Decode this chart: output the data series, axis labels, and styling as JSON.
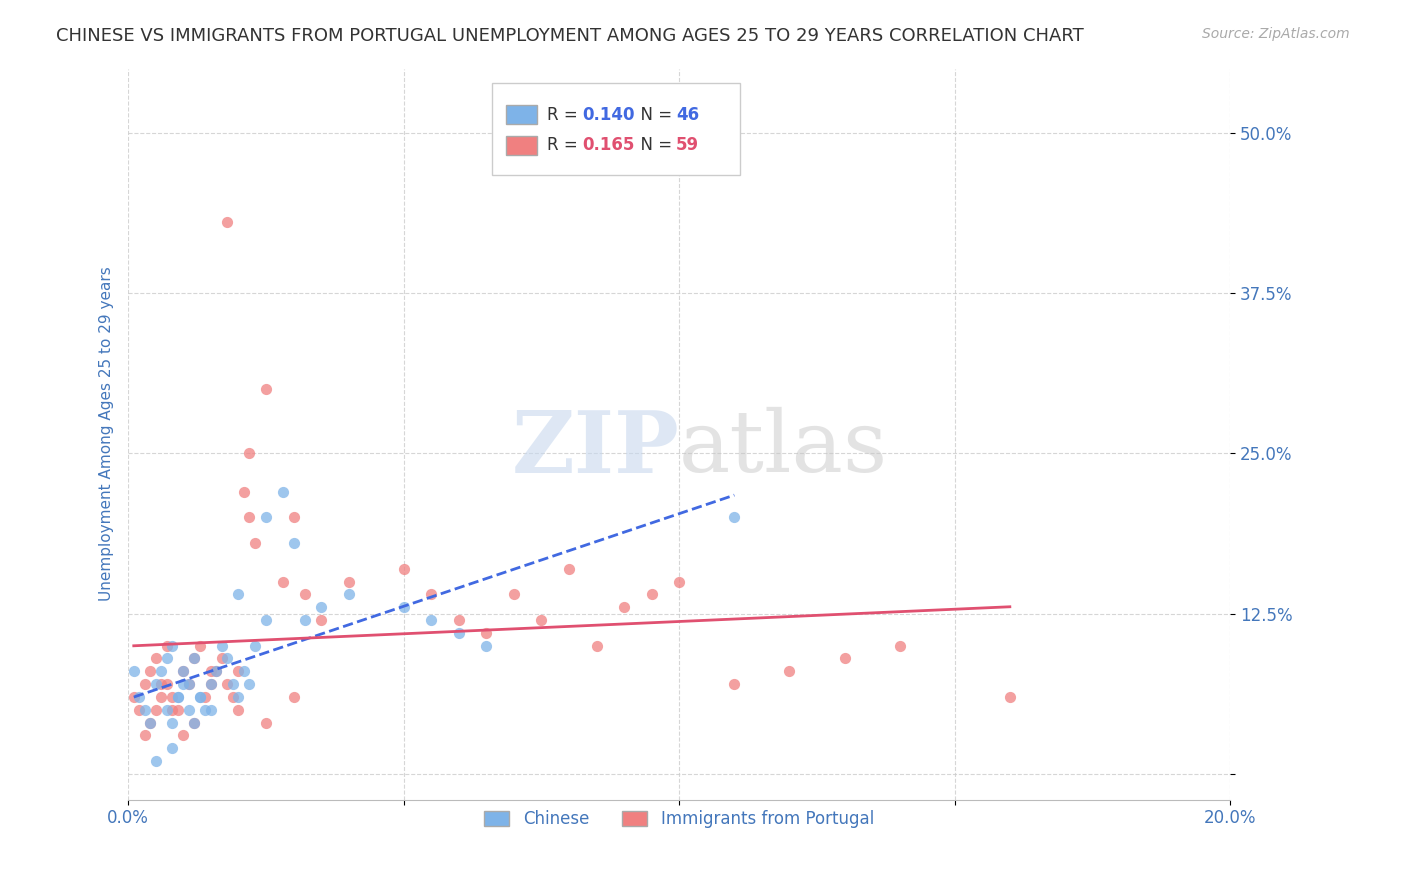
{
  "title": "CHINESE VS IMMIGRANTS FROM PORTUGAL UNEMPLOYMENT AMONG AGES 25 TO 29 YEARS CORRELATION CHART",
  "source": "Source: ZipAtlas.com",
  "ylabel": "Unemployment Among Ages 25 to 29 years",
  "xlim": [
    0.0,
    0.2
  ],
  "ylim": [
    -0.02,
    0.55
  ],
  "chinese_R": 0.14,
  "chinese_N": 46,
  "portugal_R": 0.165,
  "portugal_N": 59,
  "chinese_color": "#7EB3E8",
  "portugal_color": "#F08080",
  "chinese_line_color": "#4169E1",
  "portugal_line_color": "#E05070",
  "background_color": "#FFFFFF",
  "grid_color": "#CCCCCC",
  "watermark_zip": "ZIP",
  "watermark_atlas": "atlas",
  "title_color": "#333333",
  "axis_label_color": "#4477BB",
  "chinese_x": [
    0.001,
    0.002,
    0.003,
    0.004,
    0.005,
    0.006,
    0.007,
    0.008,
    0.009,
    0.01,
    0.011,
    0.012,
    0.013,
    0.014,
    0.015,
    0.016,
    0.017,
    0.018,
    0.019,
    0.02,
    0.021,
    0.022,
    0.023,
    0.025,
    0.028,
    0.03,
    0.032,
    0.035,
    0.04,
    0.05,
    0.055,
    0.06,
    0.065,
    0.007,
    0.008,
    0.009,
    0.01,
    0.011,
    0.012,
    0.013,
    0.015,
    0.02,
    0.025,
    0.008,
    0.11,
    0.005
  ],
  "chinese_y": [
    0.08,
    0.06,
    0.05,
    0.04,
    0.07,
    0.08,
    0.09,
    0.1,
    0.06,
    0.08,
    0.07,
    0.09,
    0.06,
    0.05,
    0.07,
    0.08,
    0.1,
    0.09,
    0.07,
    0.06,
    0.08,
    0.07,
    0.1,
    0.2,
    0.22,
    0.18,
    0.12,
    0.13,
    0.14,
    0.13,
    0.12,
    0.11,
    0.1,
    0.05,
    0.04,
    0.06,
    0.07,
    0.05,
    0.04,
    0.06,
    0.05,
    0.14,
    0.12,
    0.02,
    0.2,
    0.01
  ],
  "portugal_x": [
    0.001,
    0.002,
    0.003,
    0.004,
    0.005,
    0.006,
    0.007,
    0.008,
    0.009,
    0.01,
    0.011,
    0.012,
    0.013,
    0.014,
    0.015,
    0.016,
    0.017,
    0.018,
    0.019,
    0.02,
    0.021,
    0.022,
    0.023,
    0.025,
    0.028,
    0.03,
    0.032,
    0.035,
    0.04,
    0.05,
    0.055,
    0.06,
    0.065,
    0.07,
    0.075,
    0.08,
    0.085,
    0.09,
    0.095,
    0.1,
    0.11,
    0.12,
    0.13,
    0.14,
    0.16,
    0.004,
    0.005,
    0.006,
    0.007,
    0.015,
    0.02,
    0.025,
    0.03,
    0.018,
    0.022,
    0.01,
    0.012,
    0.008,
    0.003
  ],
  "portugal_y": [
    0.06,
    0.05,
    0.07,
    0.08,
    0.09,
    0.07,
    0.1,
    0.06,
    0.05,
    0.08,
    0.07,
    0.09,
    0.1,
    0.06,
    0.07,
    0.08,
    0.09,
    0.07,
    0.06,
    0.08,
    0.22,
    0.2,
    0.18,
    0.3,
    0.15,
    0.2,
    0.14,
    0.12,
    0.15,
    0.16,
    0.14,
    0.12,
    0.11,
    0.14,
    0.12,
    0.16,
    0.1,
    0.13,
    0.14,
    0.15,
    0.07,
    0.08,
    0.09,
    0.1,
    0.06,
    0.04,
    0.05,
    0.06,
    0.07,
    0.08,
    0.05,
    0.04,
    0.06,
    0.43,
    0.25,
    0.03,
    0.04,
    0.05,
    0.03
  ]
}
